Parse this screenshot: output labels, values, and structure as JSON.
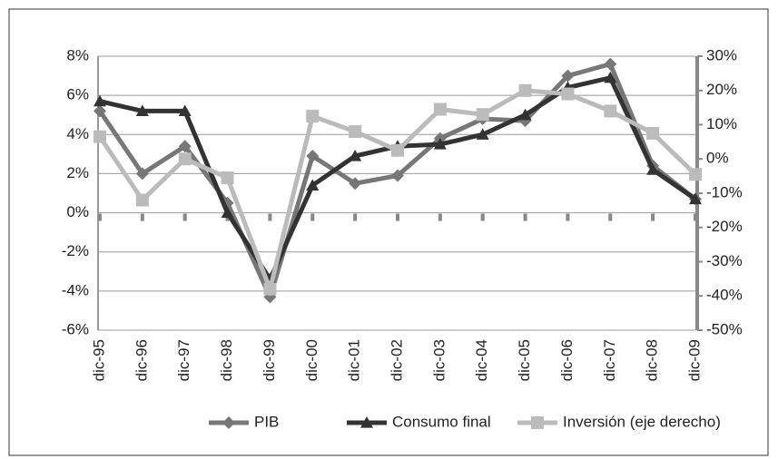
{
  "chart_data": {
    "type": "line",
    "categories": [
      "dic-95",
      "dic-96",
      "dic-97",
      "dic-98",
      "dic-99",
      "dic-00",
      "dic-01",
      "dic-02",
      "dic-03",
      "dic-04",
      "dic-05",
      "dic-06",
      "dic-07",
      "dic-08",
      "dic-09"
    ],
    "series": [
      {
        "name": "PIB",
        "color": "#777777",
        "marker": "diamond",
        "values": [
          5.2,
          2.0,
          3.4,
          0.5,
          -4.3,
          2.9,
          1.5,
          1.9,
          3.8,
          4.8,
          4.7,
          7.0,
          7.6,
          2.4,
          0.7
        ]
      },
      {
        "name": "Consumo final",
        "color": "#333333",
        "marker": "triangle",
        "values": [
          5.7,
          5.2,
          5.2,
          0.0,
          -3.4,
          1.4,
          2.9,
          3.4,
          3.5,
          4.0,
          5.0,
          6.4,
          6.9,
          2.2,
          0.7
        ]
      },
      {
        "name": "Inversión (eje derecho)",
        "color": "#bbbbbb",
        "marker": "square",
        "axis": "y2",
        "values": [
          6.5,
          -12,
          0,
          -5.5,
          -38,
          12.5,
          8,
          2.5,
          14.5,
          13,
          20,
          19,
          14,
          7.5,
          -4.5
        ]
      }
    ],
    "ylim": [
      -6,
      8
    ],
    "yticks": [
      {
        "value": -6,
        "label": "-6%"
      },
      {
        "value": -4,
        "label": "-4%"
      },
      {
        "value": -2,
        "label": "-2%"
      },
      {
        "value": 0,
        "label": "0%"
      },
      {
        "value": 2,
        "label": "2%"
      },
      {
        "value": 4,
        "label": "4%"
      },
      {
        "value": 6,
        "label": "6%"
      },
      {
        "value": 8,
        "label": "8%"
      }
    ],
    "y2lim": [
      -50,
      30
    ],
    "y2ticks": [
      {
        "value": -50,
        "label": "-50%"
      },
      {
        "value": -40,
        "label": "-40%"
      },
      {
        "value": -30,
        "label": "-30%"
      },
      {
        "value": -20,
        "label": "-20%"
      },
      {
        "value": -10,
        "label": "-10%"
      },
      {
        "value": 0,
        "label": "0%"
      },
      {
        "value": 10,
        "label": "10%"
      },
      {
        "value": 20,
        "label": "20%"
      },
      {
        "value": 30,
        "label": "30%"
      }
    ],
    "grid": true,
    "legend": "bottom"
  }
}
